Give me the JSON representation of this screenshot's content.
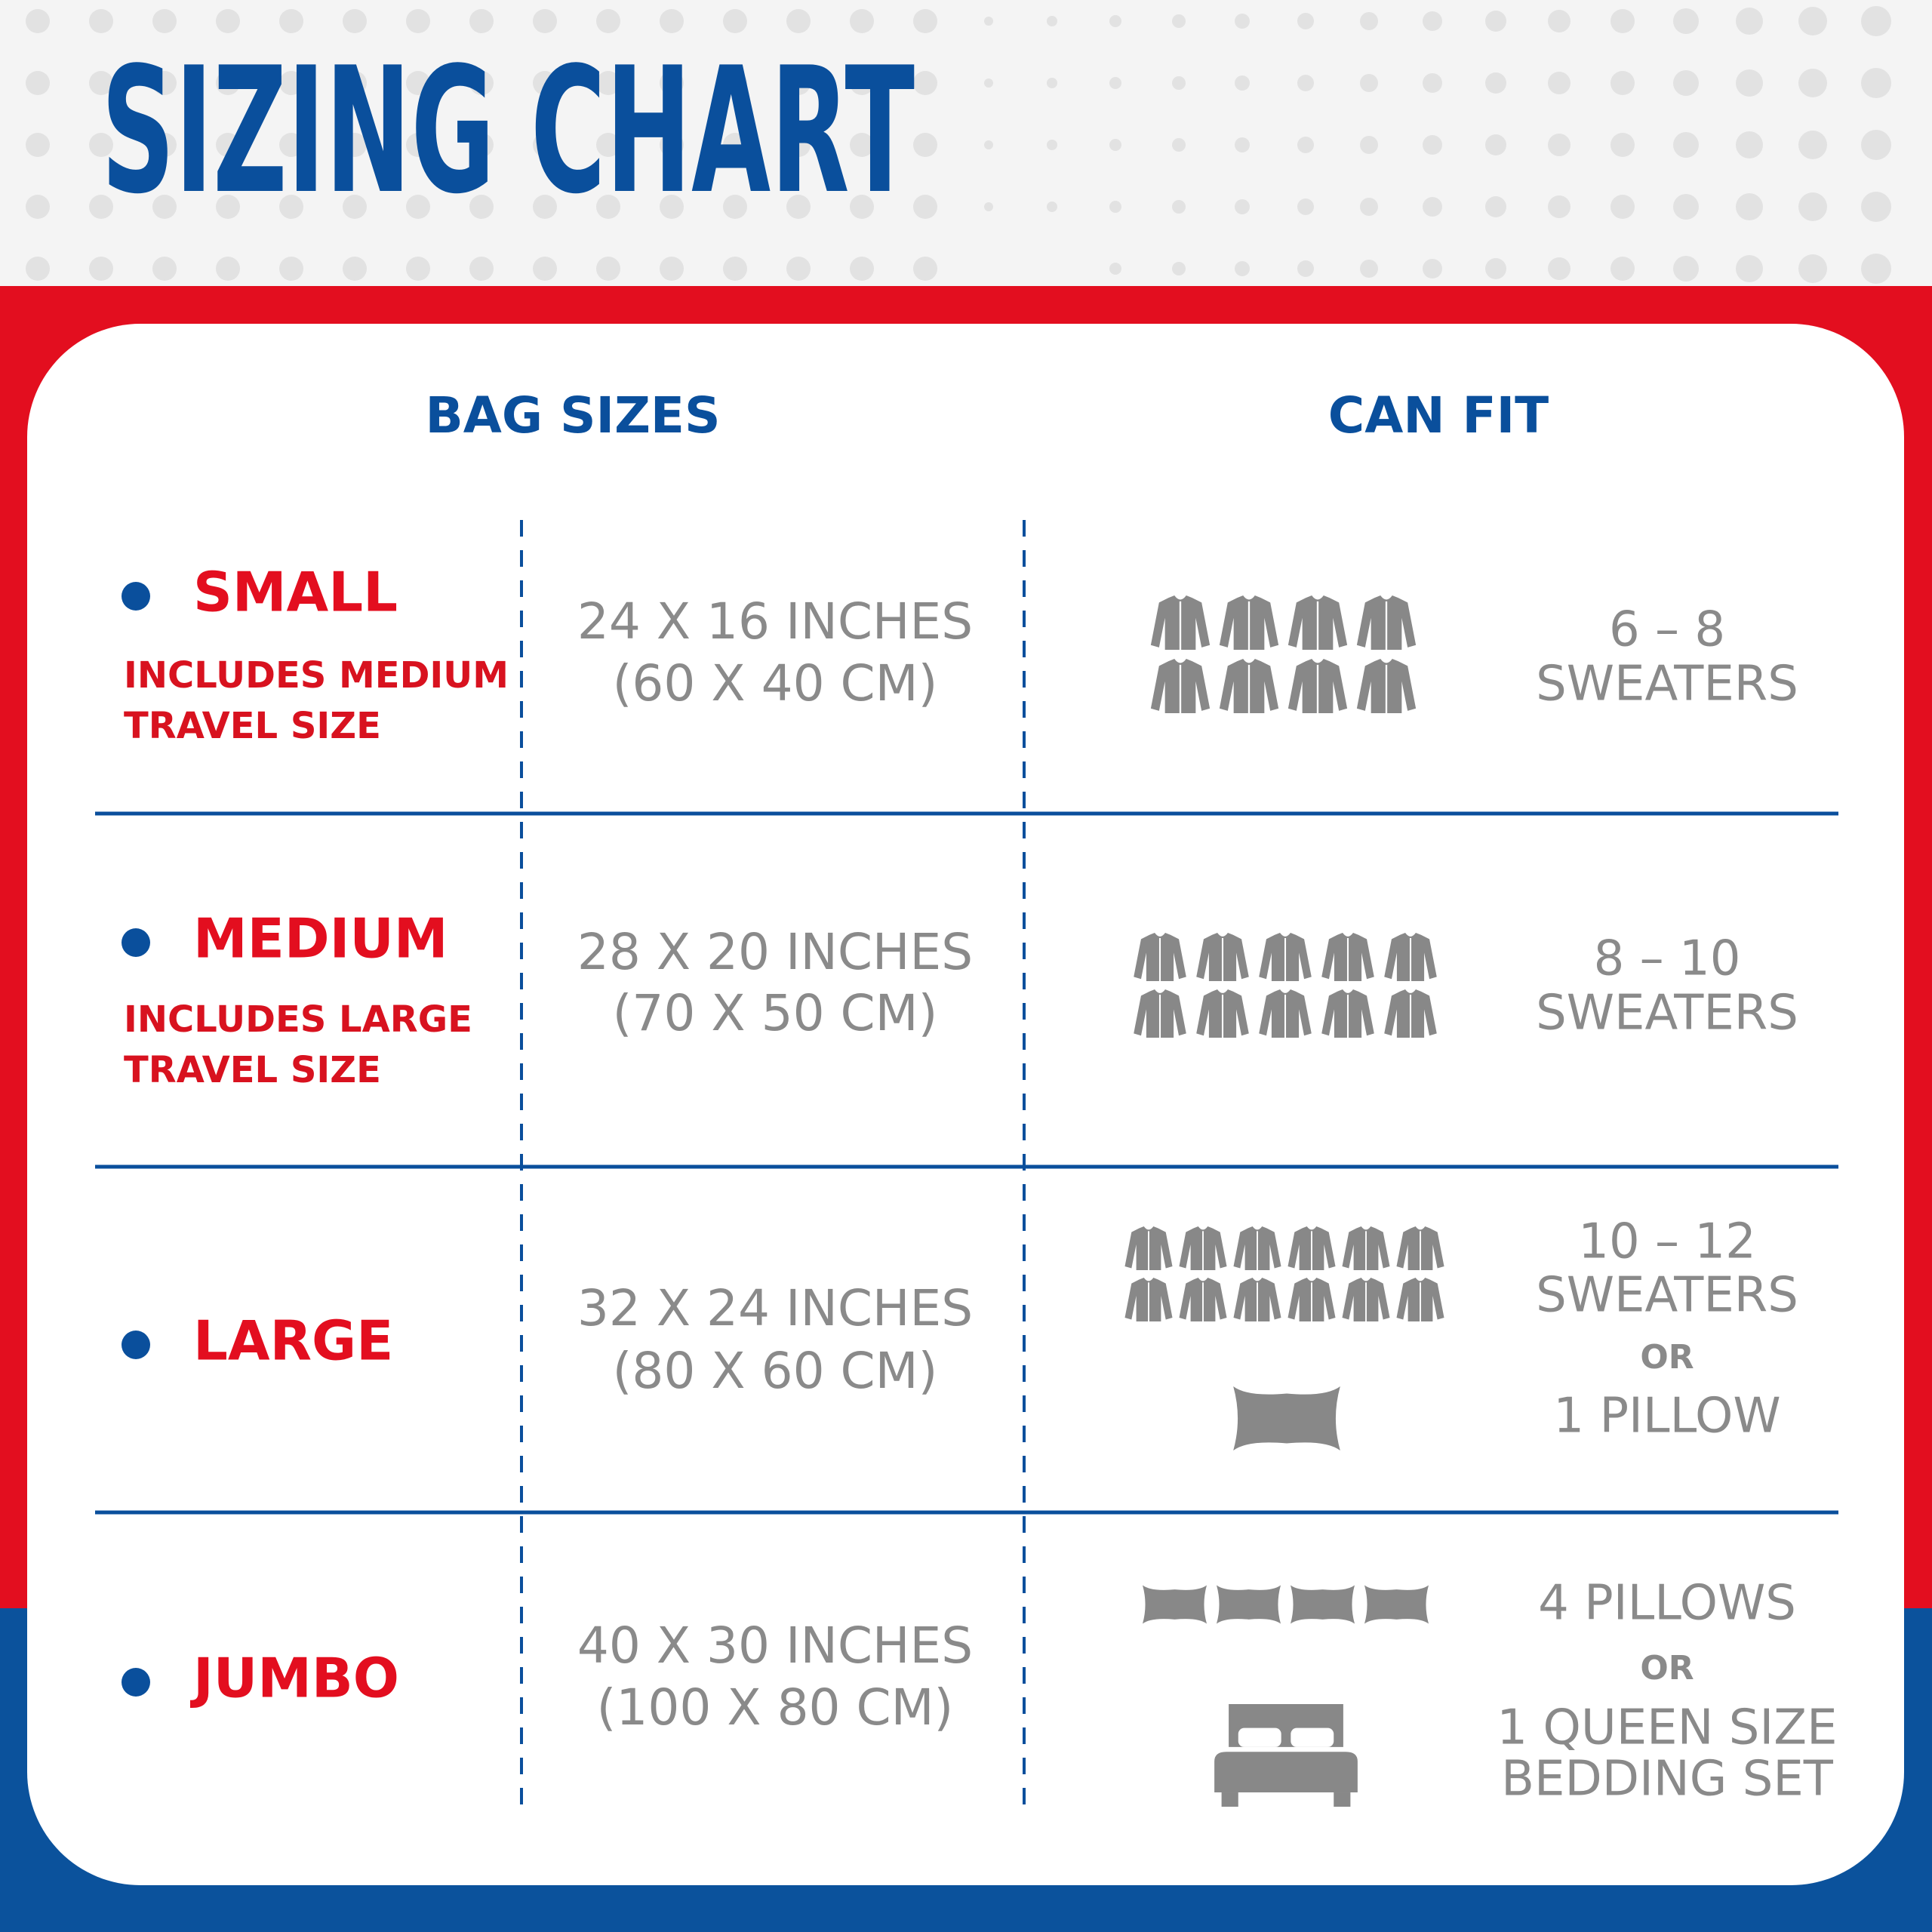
{
  "header": {
    "title": "SIZING CHART"
  },
  "columns": [
    "BAG SIZES",
    "CAN FIT"
  ],
  "rows": [
    {
      "name": "SMALL",
      "note": [
        "INCLUDES MEDIUM",
        "TRAVEL SIZE"
      ],
      "size": [
        "24 X 16 INCHES",
        "(60 X 40 CM)"
      ],
      "fit": [
        "6 – 8",
        "SWEATERS"
      ]
    },
    {
      "name": "MEDIUM",
      "note": [
        "INCLUDES LARGE",
        "TRAVEL SIZE"
      ],
      "size": [
        "28 X 20 INCHES",
        "(70 X 50 CM)"
      ],
      "fit": [
        "8 – 10",
        "SWEATERS"
      ]
    },
    {
      "name": "LARGE",
      "note": [],
      "size": [
        "32 X 24 INCHES",
        "(80 X 60 CM)"
      ],
      "fit": [
        "10 – 12",
        "SWEATERS",
        "OR",
        "1 PILLOW"
      ]
    },
    {
      "name": "JUMBO",
      "note": [],
      "size": [
        "40 X 30 INCHES",
        "(100 X 80 CM)"
      ],
      "fit": [
        "4 PILLOWS",
        "OR",
        "1 QUEEN SIZE",
        "BEDDING SET"
      ]
    }
  ]
}
